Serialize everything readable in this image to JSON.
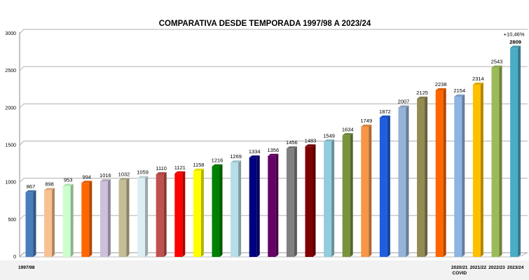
{
  "chart_data": {
    "type": "bar",
    "title": "COMPARATIVA DESDE TEMPORADA 1997/98 A 2023/24",
    "xlabel": "",
    "ylabel": "",
    "ylim": [
      0,
      3000
    ],
    "yticks": [
      0,
      500,
      1000,
      1500,
      2000,
      2500,
      3000
    ],
    "grid": true,
    "style": "3d-columns",
    "categories": [
      "1997/98",
      "",
      "",
      "",
      "",
      "",
      "",
      "",
      "",
      "",
      "",
      "",
      "",
      "",
      "",
      "",
      "",
      "",
      "",
      "",
      "",
      "",
      "",
      "2020/21\nCOVID",
      "2021/22",
      "2022/23",
      "2023/24"
    ],
    "values": [
      867,
      898,
      953,
      994,
      1016,
      1032,
      1059,
      1110,
      1121,
      1158,
      1216,
      1269,
      1334,
      1356,
      1456,
      1483,
      1549,
      1634,
      1749,
      1872,
      2007,
      2125,
      2238,
      2154,
      2314,
      2543,
      2809
    ],
    "colors": [
      "#4a7ebb",
      "#fac090",
      "#ccffcc",
      "#ff6600",
      "#ccc0da",
      "#c4bd97",
      "#dbeef4",
      "#c0504d",
      "#ff0000",
      "#ffff00",
      "#008000",
      "#b7dee8",
      "#000080",
      "#660066",
      "#808080",
      "#800000",
      "#93cddd",
      "#77933c",
      "#f79646",
      "#1f5fdf",
      "#95b3d7",
      "#948a54",
      "#ff6600",
      "#8db4e2",
      "#ffc000",
      "#9bbb59",
      "#4bacc6"
    ],
    "annotations": [
      {
        "text": "+10,46%",
        "target": "2023/24"
      }
    ]
  }
}
